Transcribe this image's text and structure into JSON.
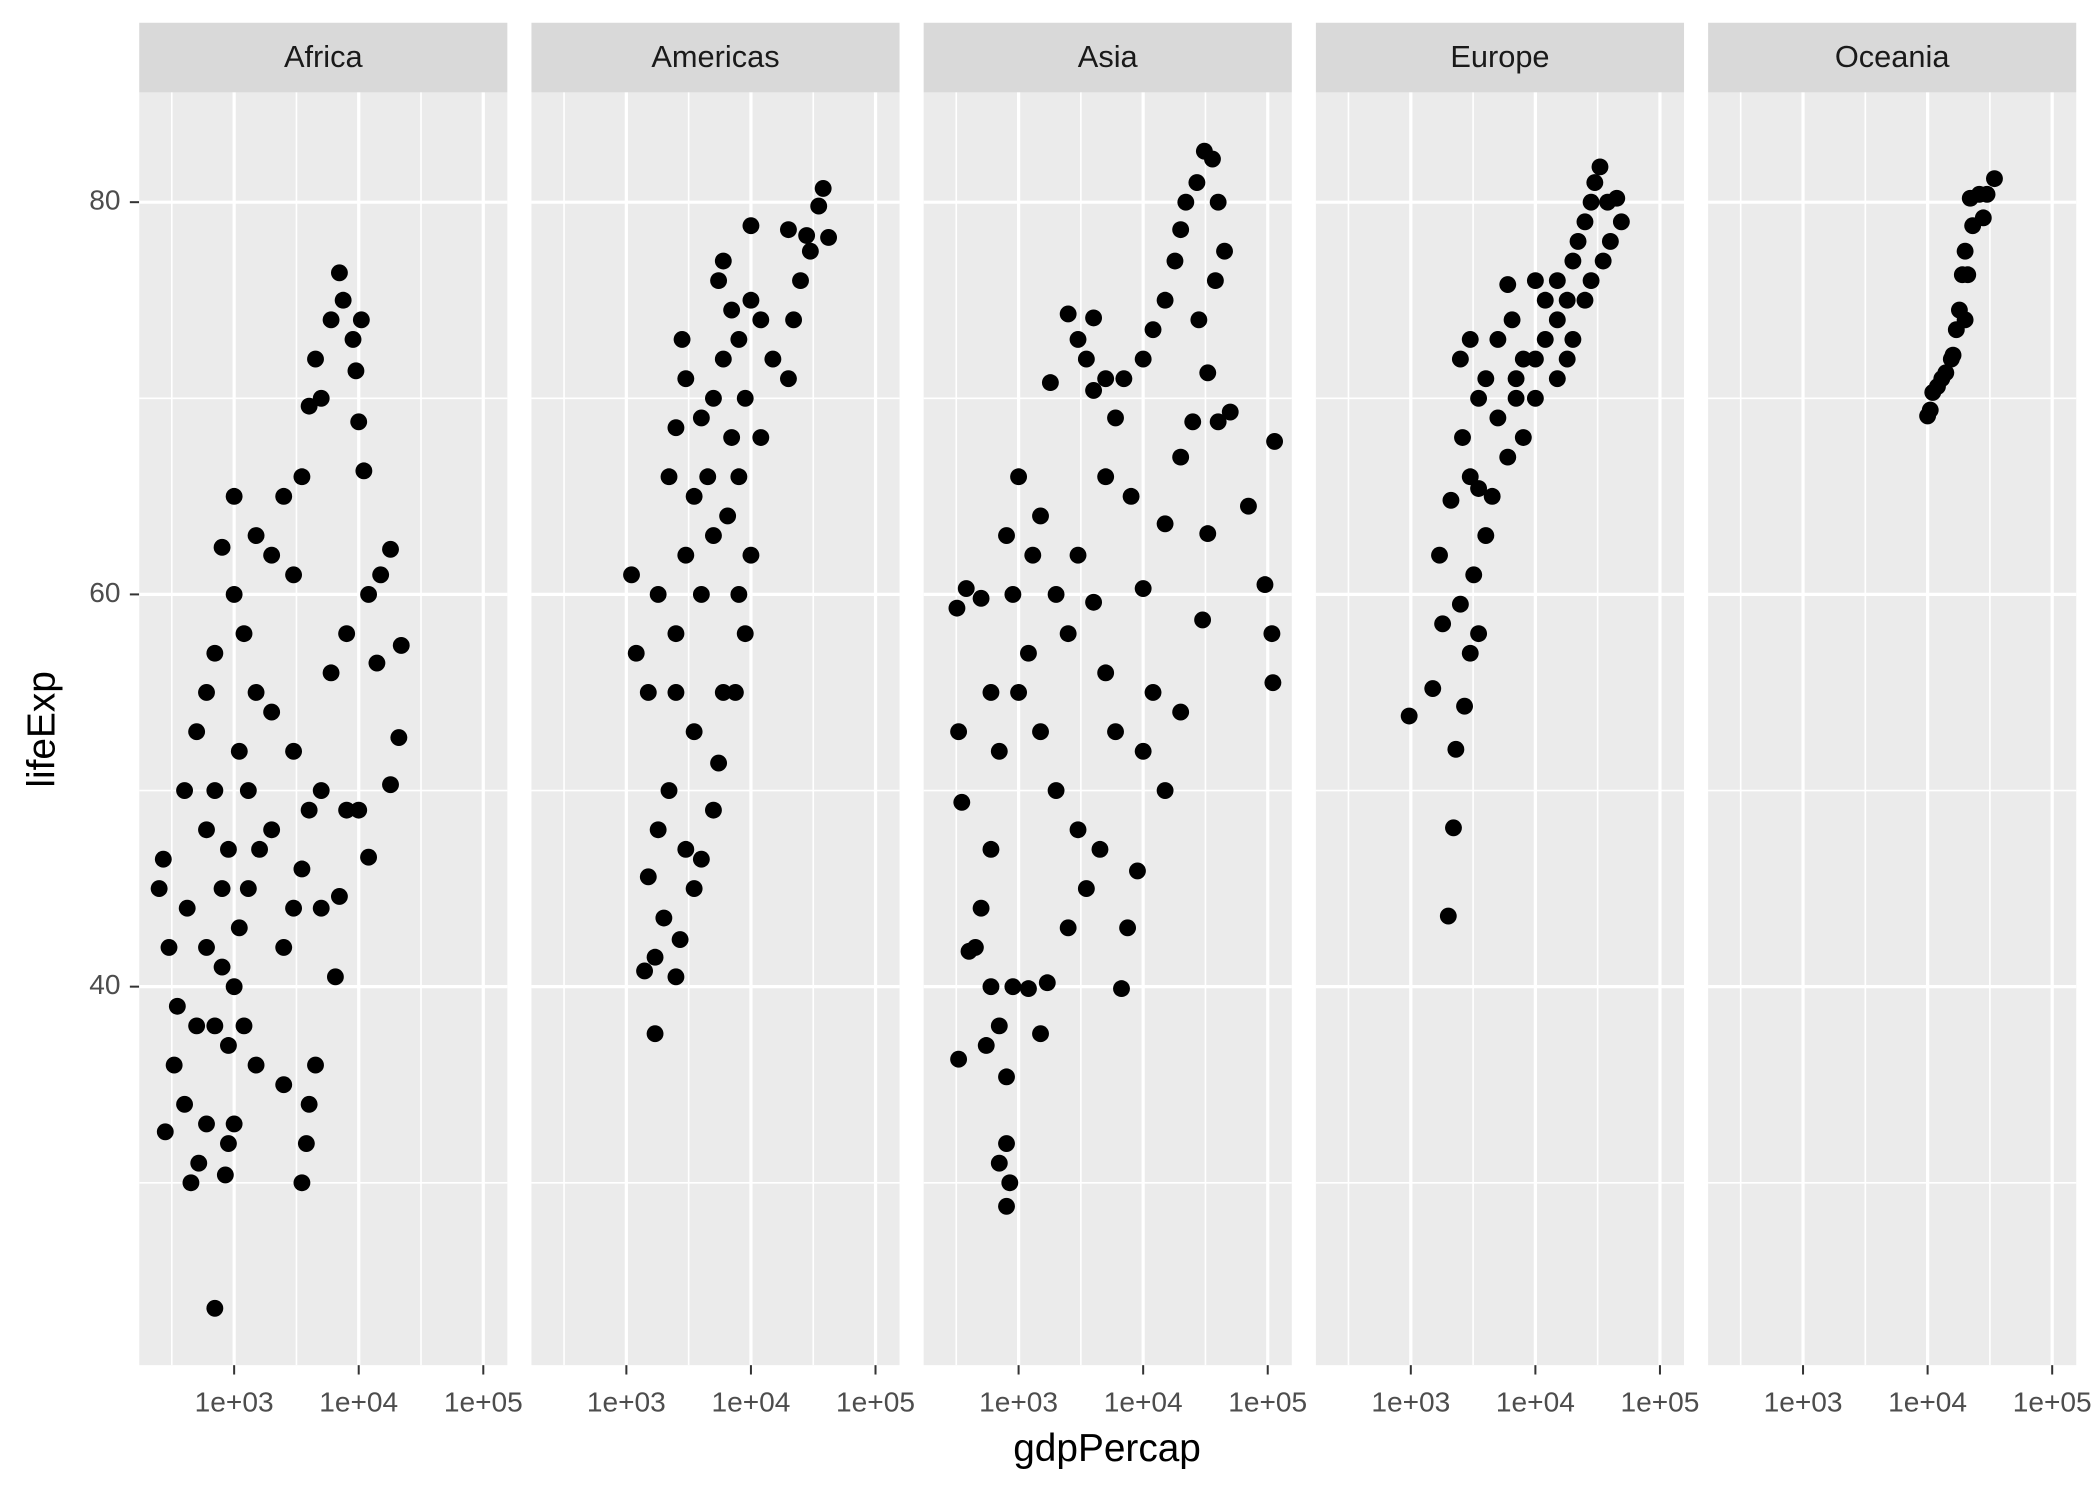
{
  "chart_data": {
    "type": "scatter",
    "x_label": "gdpPercap",
    "y_label": "lifeExp",
    "x_log": true,
    "color": "#000000",
    "grid": true,
    "xlim": [
      173,
      156000
    ],
    "ylim": [
      20.7,
      85.6
    ],
    "xticks": [
      {
        "value": 1000,
        "label": "1e+03"
      },
      {
        "value": 10000,
        "label": "1e+04"
      },
      {
        "value": 100000,
        "label": "1e+05"
      }
    ],
    "yticks": [
      40,
      60,
      80
    ],
    "x_minor_grid": [
      316,
      3162,
      31623
    ],
    "y_minor_grid": [
      30,
      50,
      70
    ],
    "series": [
      {
        "name": "Africa",
        "x": [
          700,
          280,
          330,
          400,
          450,
          520,
          600,
          850,
          900,
          1000,
          3500,
          3800,
          4000,
          4500,
          2500,
          1500,
          1200,
          900,
          700,
          500,
          350,
          300,
          250,
          270,
          420,
          600,
          800,
          1000,
          1100,
          1300,
          1600,
          2000,
          2500,
          3000,
          3500,
          4000,
          5000,
          6500,
          7000,
          8000,
          10000,
          12000,
          18000,
          21000,
          21950,
          14000,
          12000,
          8000,
          6000,
          5000,
          3000,
          2000,
          1500,
          1200,
          1000,
          800,
          1000,
          1500,
          2000,
          2500,
          3000,
          3500,
          4000,
          4500,
          5000,
          6000,
          7000,
          7500,
          9000,
          10500,
          9500,
          10000,
          11000,
          15000,
          18000,
          600,
          700,
          900,
          1100,
          1300,
          600,
          800,
          400,
          500,
          700
        ],
        "values": [
          23.6,
          32.6,
          36,
          34,
          30,
          31,
          33,
          30.4,
          32,
          33,
          30,
          32,
          34,
          36,
          35,
          36,
          38,
          37,
          38,
          38,
          39,
          42,
          45,
          46.5,
          44,
          42,
          41,
          40,
          43,
          45,
          47,
          48,
          42,
          44,
          46,
          49,
          44,
          40.5,
          44.6,
          49,
          49,
          46.6,
          50.3,
          52.7,
          57.4,
          56.5,
          60,
          58,
          56,
          50,
          52,
          54,
          55,
          58,
          60,
          62.4,
          65,
          63,
          62,
          65,
          61,
          66,
          69.6,
          72,
          70,
          74,
          76.4,
          75,
          73,
          74,
          71.4,
          68.8,
          66.3,
          61,
          62.3,
          55,
          50,
          47,
          52,
          50,
          48,
          45,
          50,
          53,
          57
        ]
      },
      {
        "name": "Americas",
        "x": [
          1700,
          1400,
          1700,
          2000,
          2500,
          2700,
          3500,
          4000,
          1500,
          1800,
          2200,
          3000,
          5000,
          5500,
          3500,
          2500,
          1500,
          1200,
          1100,
          1800,
          2500,
          3000,
          4000,
          6000,
          7500,
          9000,
          10000,
          8000,
          5000,
          3500,
          2200,
          2500,
          3000,
          2800,
          4000,
          5000,
          6000,
          7000,
          8000,
          10000,
          12000,
          15000,
          20000,
          22000,
          25000,
          30000,
          35000,
          38000,
          42000,
          28000,
          20000,
          10000,
          6000,
          7000,
          8000,
          12000,
          4500,
          6500,
          9000,
          5500
        ],
        "values": [
          37.6,
          40.8,
          41.5,
          43.5,
          40.5,
          42.4,
          45,
          46.5,
          45.6,
          48,
          50,
          47,
          49,
          51.4,
          53,
          55,
          55,
          57,
          61,
          60,
          58,
          62,
          60,
          55,
          55,
          58,
          62,
          60,
          63,
          65,
          66,
          68.5,
          71,
          73,
          69,
          70,
          72,
          74.5,
          73,
          75,
          74,
          72,
          71,
          74,
          76,
          77.5,
          79.8,
          80.7,
          78.2,
          78.3,
          78.6,
          78.8,
          77,
          68,
          66,
          68,
          66,
          64,
          70,
          76
        ]
      },
      {
        "name": "Asia",
        "x": [
          330,
          400,
          350,
          330,
          320,
          380,
          500,
          600,
          700,
          600,
          500,
          450,
          600,
          700,
          800,
          800,
          850,
          800,
          700,
          550,
          900,
          1200,
          1500,
          1700,
          2500,
          3500,
          4500,
          3000,
          2000,
          1500,
          1000,
          1200,
          900,
          800,
          1000,
          1300,
          1500,
          2000,
          2500,
          3000,
          4000,
          5000,
          6000,
          6700,
          7500,
          9000,
          10000,
          12000,
          15000,
          20000,
          30000,
          50000,
          70000,
          95000,
          108000,
          110000,
          113500,
          25000,
          33000,
          15000,
          10000,
          8000,
          6000,
          5000,
          4000,
          3000,
          2500,
          1800,
          3500,
          4000,
          5000,
          7000,
          10000,
          12000,
          15000,
          18000,
          20000,
          22000,
          27000,
          31000,
          36000,
          40000,
          45000,
          38000,
          28000,
          33000,
          40000,
          20000
        ],
        "values": [
          36.3,
          41.8,
          49.4,
          53,
          59.3,
          60.3,
          59.8,
          55,
          52,
          47,
          44,
          42,
          40,
          38,
          35.4,
          32,
          30,
          28.8,
          31,
          37,
          40,
          39.9,
          37.6,
          40.2,
          43,
          45,
          47,
          48,
          50,
          53,
          55,
          57,
          60,
          63,
          66,
          62,
          64,
          60,
          58,
          62,
          59.6,
          56,
          53,
          39.9,
          43,
          45.9,
          52,
          55,
          50,
          54,
          58.7,
          69.3,
          64.5,
          60.5,
          58,
          55.5,
          67.8,
          68.8,
          63.1,
          63.6,
          60.3,
          65,
          69,
          66,
          70.4,
          73,
          74.3,
          70.8,
          72,
          74.1,
          71,
          71,
          72,
          73.5,
          75,
          77,
          78.6,
          80,
          81,
          82.6,
          82.2,
          80,
          77.5,
          76,
          74,
          71.3,
          68.8,
          67
        ]
      },
      {
        "name": "Europe",
        "x": [
          970,
          1500,
          1800,
          2000,
          2200,
          2300,
          1700,
          2100,
          2500,
          2700,
          3000,
          3200,
          3500,
          4000,
          3000,
          2600,
          2500,
          3000,
          3500,
          4000,
          5000,
          5000,
          6000,
          6500,
          7000,
          8000,
          10000,
          10000,
          12000,
          12000,
          15000,
          15000,
          18000,
          20000,
          22000,
          25000,
          28000,
          30000,
          33000,
          38000,
          45000,
          49000,
          35000,
          28000,
          20000,
          15000,
          8000,
          6000,
          4500,
          3500,
          10000,
          7000,
          25000,
          40000,
          18000
        ],
        "values": [
          53.8,
          55.2,
          58.5,
          43.6,
          48.1,
          52.1,
          62,
          64.8,
          59.5,
          54.3,
          57,
          61,
          58,
          63,
          66,
          68,
          72,
          73,
          70,
          71,
          69,
          73,
          75.8,
          74,
          71,
          72,
          72,
          70,
          73,
          75,
          74,
          76,
          75,
          77,
          78,
          79,
          80,
          81,
          81.8,
          80,
          80.2,
          79,
          77,
          76,
          73,
          71,
          68,
          67,
          65,
          65.4,
          76,
          70,
          75,
          78,
          72
        ]
      },
      {
        "name": "Oceania",
        "x": [
          10000,
          10500,
          11000,
          12000,
          13000,
          14000,
          15500,
          16000,
          17000,
          18000,
          19000,
          20000,
          23000,
          22000,
          26000,
          28000,
          30000,
          34400,
          21000,
          20000
        ],
        "values": [
          69.1,
          69.4,
          70.3,
          70.6,
          71,
          71.3,
          72,
          72.2,
          73.5,
          74.5,
          76.3,
          77.5,
          78.8,
          80.2,
          80.4,
          79.2,
          80.4,
          81.2,
          76.3,
          74
        ]
      }
    ]
  }
}
